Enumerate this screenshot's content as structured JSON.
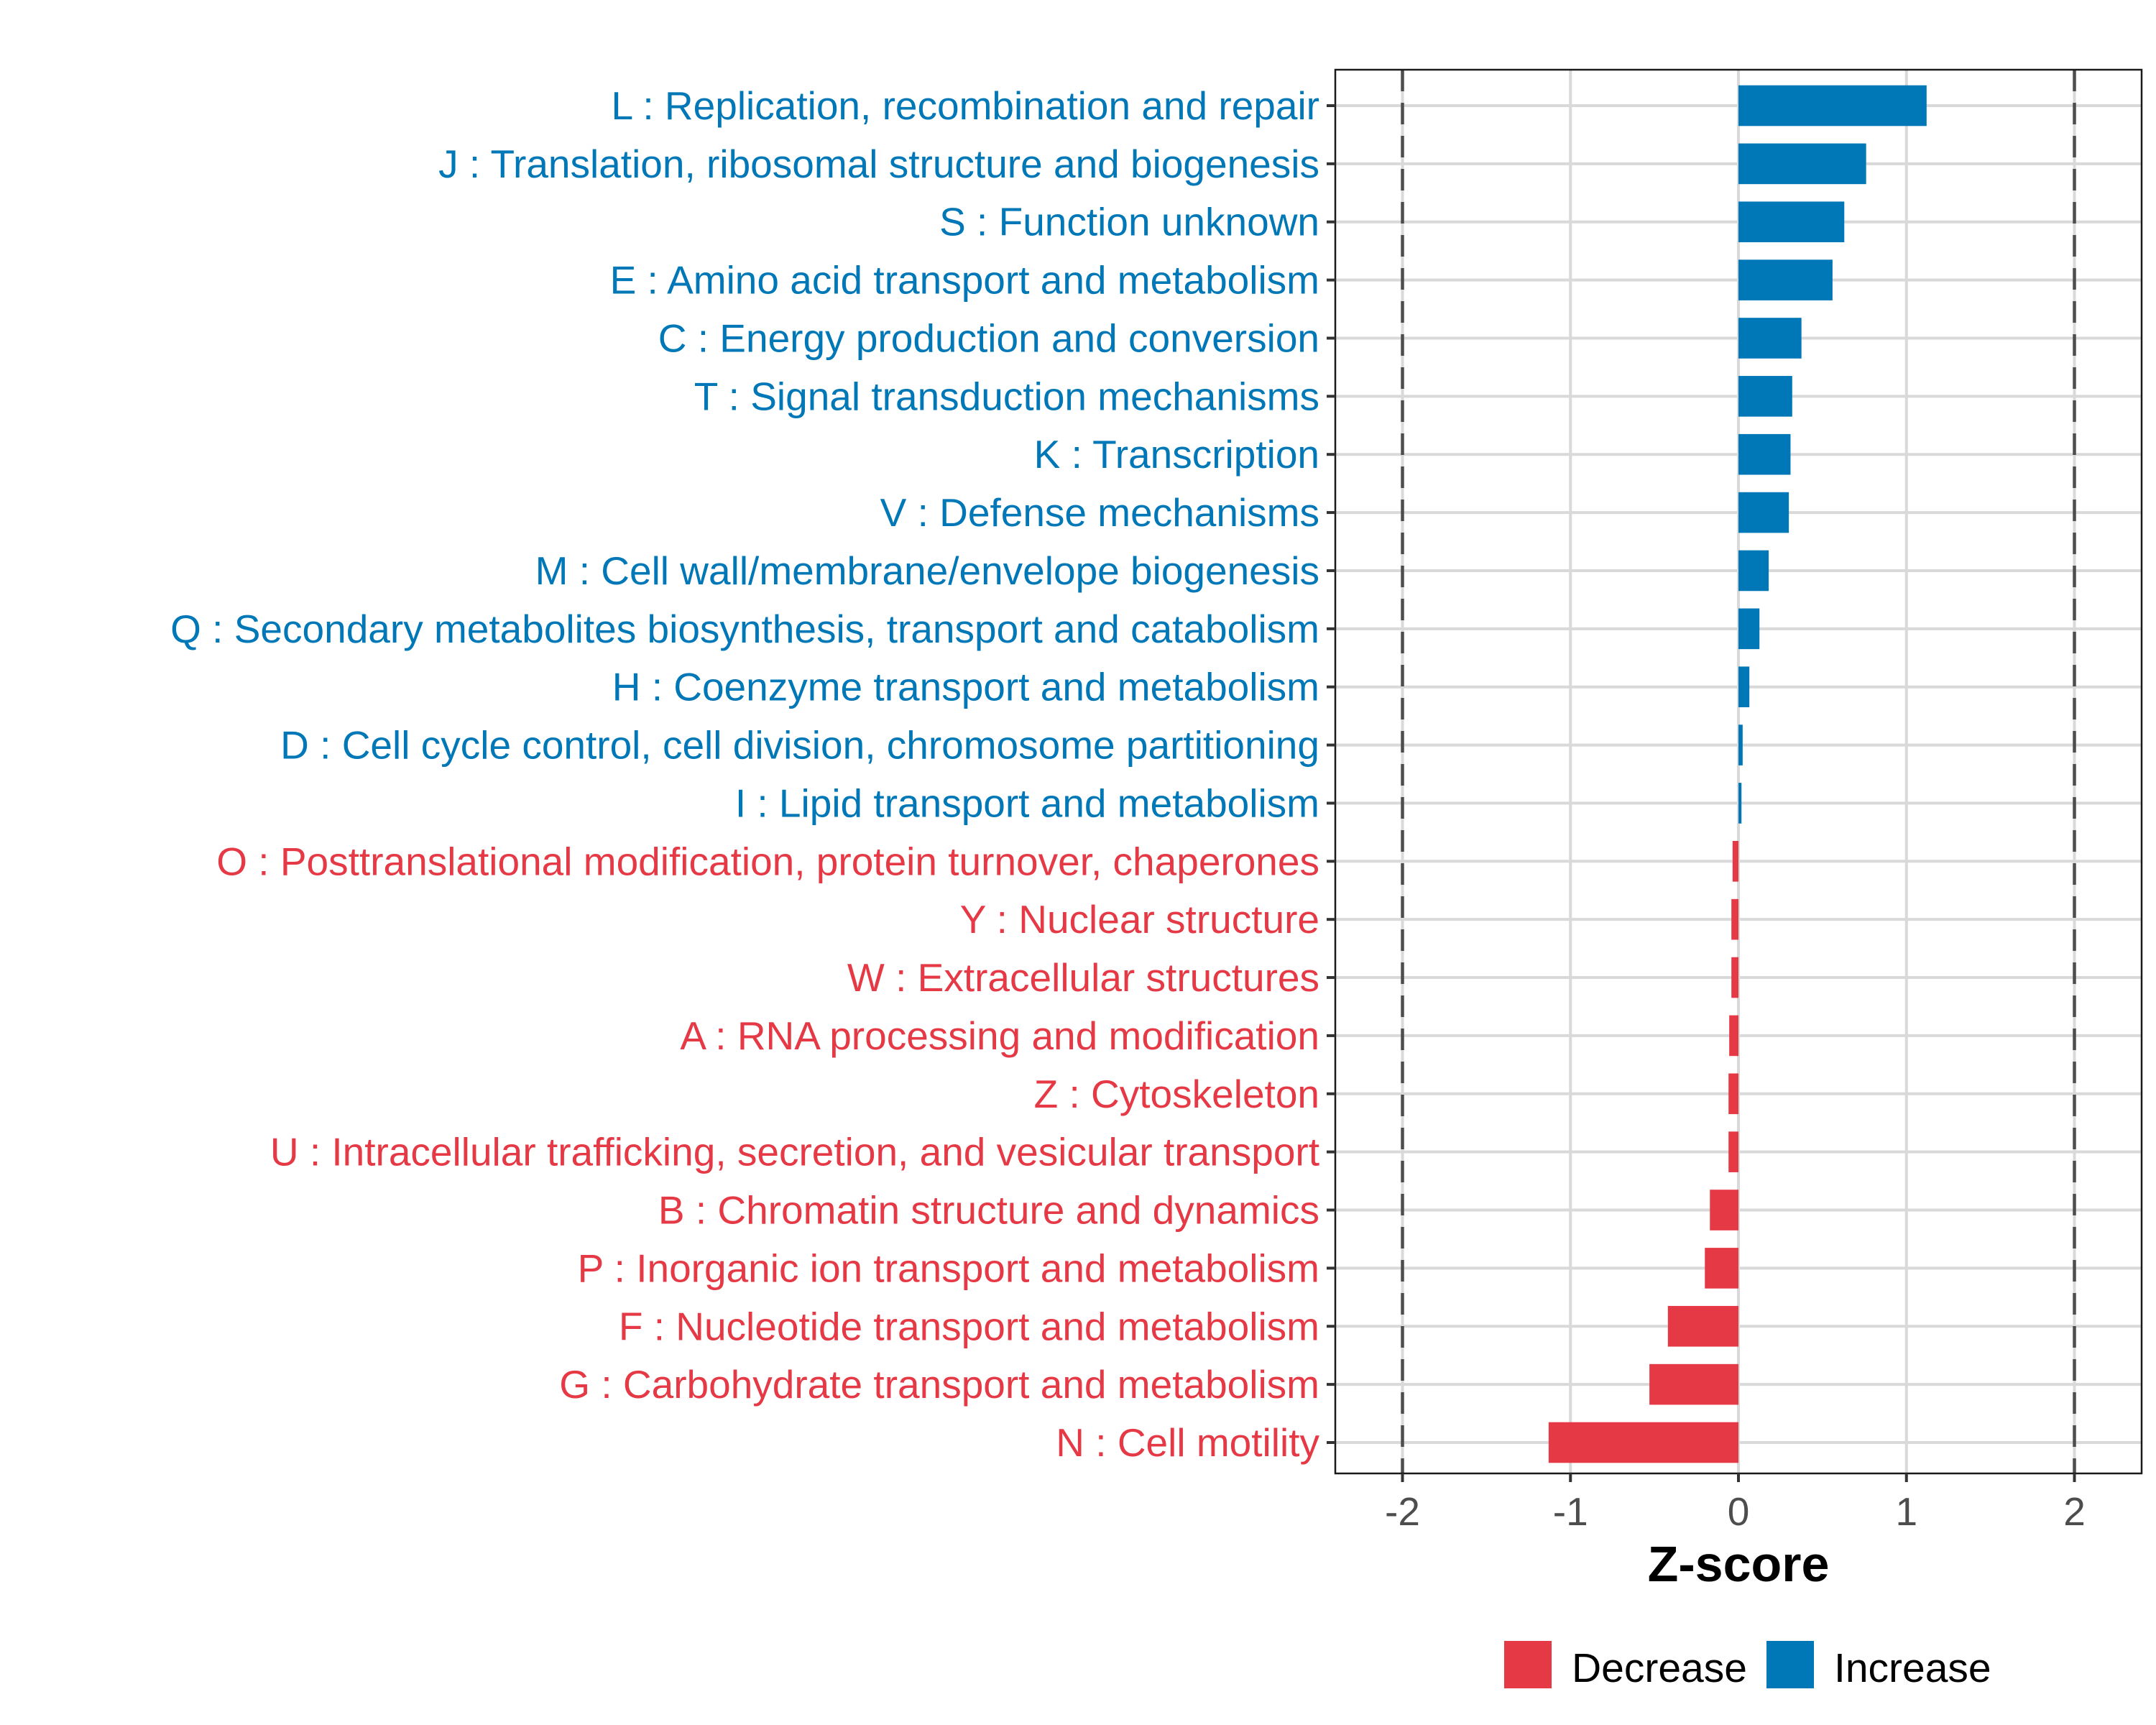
{
  "chart_data": {
    "type": "bar",
    "orientation": "horizontal",
    "title": "",
    "xlabel": "Z-score",
    "ylabel": "",
    "xlim": [
      -2.4,
      2.4
    ],
    "xticks": [
      -2,
      -1,
      0,
      1,
      2
    ],
    "xtick_labels": [
      "-2",
      "-1",
      "0",
      "1",
      "2"
    ],
    "reference_lines": [
      -2,
      2
    ],
    "grid": true,
    "legend": {
      "position": "bottom",
      "entries": [
        {
          "label": "Decrease",
          "color": "#E63946"
        },
        {
          "label": "Increase",
          "color": "#0077B6"
        }
      ]
    },
    "colors": {
      "Increase": "#0077B6",
      "Decrease": "#E63946"
    },
    "categories": [
      "L : Replication, recombination and repair",
      "J : Translation, ribosomal structure and biogenesis",
      "S : Function unknown",
      "E : Amino acid transport and metabolism",
      "C : Energy production and conversion",
      "T : Signal transduction mechanisms",
      "K : Transcription",
      "V : Defense mechanisms",
      "M : Cell wall/membrane/envelope biogenesis",
      "Q : Secondary metabolites biosynthesis, transport and catabolism",
      "H : Coenzyme transport and metabolism",
      "D : Cell cycle control, cell division, chromosome partitioning",
      "I : Lipid transport and metabolism",
      "O : Posttranslational modification, protein turnover, chaperones",
      "Y : Nuclear structure",
      "W : Extracellular structures",
      "A : RNA processing and modification",
      "Z : Cytoskeleton",
      "U : Intracellular trafficking, secretion, and vesicular transport",
      "B : Chromatin structure and dynamics",
      "P : Inorganic ion transport and metabolism",
      "F : Nucleotide transport and metabolism",
      "G : Carbohydrate transport and metabolism",
      "N : Cell motility"
    ],
    "values": [
      1.12,
      0.76,
      0.63,
      0.56,
      0.375,
      0.32,
      0.31,
      0.3,
      0.18,
      0.125,
      0.065,
      0.025,
      0.018,
      -0.035,
      -0.042,
      -0.042,
      -0.055,
      -0.059,
      -0.059,
      -0.17,
      -0.2,
      -0.42,
      -0.53,
      -1.13
    ],
    "groups": [
      "Increase",
      "Increase",
      "Increase",
      "Increase",
      "Increase",
      "Increase",
      "Increase",
      "Increase",
      "Increase",
      "Increase",
      "Increase",
      "Increase",
      "Increase",
      "Decrease",
      "Decrease",
      "Decrease",
      "Decrease",
      "Decrease",
      "Decrease",
      "Decrease",
      "Decrease",
      "Decrease",
      "Decrease",
      "Decrease"
    ]
  }
}
